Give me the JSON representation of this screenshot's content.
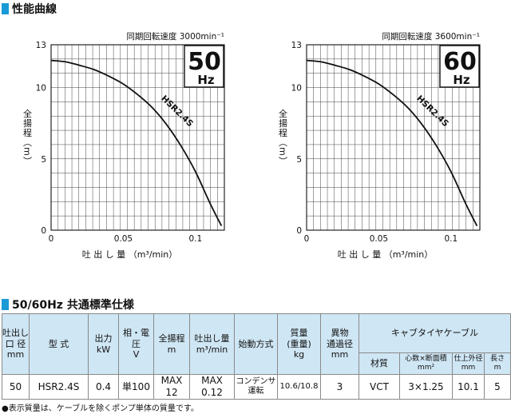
{
  "section1_title": "性能曲線",
  "section2_title": "50/60Hz 共通標準仕様",
  "chart_data": [
    {
      "type": "line",
      "speed_label": "同期回転速度 3000min⁻¹",
      "freq_value": "50",
      "freq_unit": "Hz",
      "ylabel": "全揚程（m）",
      "xlabel": "吐 出 し 量 （m³/min）",
      "xlim": [
        0,
        0.12
      ],
      "ylim": [
        0,
        13
      ],
      "x_ticks": [
        0,
        0.05,
        0.1
      ],
      "x_tick_labels": [
        "0",
        "0.05",
        "0.1"
      ],
      "y_ticks": [
        0,
        5,
        10,
        13
      ],
      "y_tick_labels": [
        "0",
        "5",
        "10",
        "13"
      ],
      "grid": true,
      "series": [
        {
          "name": "HSR2.4S",
          "x": [
            0,
            0.01,
            0.02,
            0.03,
            0.04,
            0.05,
            0.06,
            0.07,
            0.08,
            0.09,
            0.1,
            0.11,
            0.118
          ],
          "y": [
            11.9,
            11.8,
            11.55,
            11.25,
            10.8,
            10.25,
            9.5,
            8.6,
            7.4,
            5.9,
            4.1,
            1.9,
            0.3
          ]
        }
      ]
    },
    {
      "type": "line",
      "speed_label": "同期回転速度 3600min⁻¹",
      "freq_value": "60",
      "freq_unit": "Hz",
      "ylabel": "全揚程（m）",
      "xlabel": "吐 出 し 量 （m³/min）",
      "xlim": [
        0,
        0.12
      ],
      "ylim": [
        0,
        13
      ],
      "x_ticks": [
        0,
        0.05,
        0.1
      ],
      "x_tick_labels": [
        "0",
        "0.05",
        "0.1"
      ],
      "y_ticks": [
        0,
        5,
        10,
        13
      ],
      "y_tick_labels": [
        "0",
        "5",
        "10",
        "13"
      ],
      "grid": true,
      "series": [
        {
          "name": "HSR2.4S",
          "x": [
            0,
            0.01,
            0.02,
            0.03,
            0.04,
            0.05,
            0.06,
            0.07,
            0.08,
            0.09,
            0.1,
            0.11,
            0.118
          ],
          "y": [
            11.9,
            11.8,
            11.55,
            11.25,
            10.8,
            10.25,
            9.5,
            8.6,
            7.4,
            5.9,
            4.1,
            1.9,
            0.3
          ]
        }
      ]
    }
  ],
  "table": {
    "h_bore": [
      "吐出し",
      "口 径",
      "mm"
    ],
    "h_model": "型 式",
    "h_output": [
      "出力",
      "kW"
    ],
    "h_phase": [
      "相・電圧",
      "V"
    ],
    "h_head": [
      "全揚程",
      "m"
    ],
    "h_flow": [
      "吐出し量",
      "m³/min"
    ],
    "h_start": "始動方式",
    "h_mass": [
      "質量",
      "(重量)",
      "kg"
    ],
    "h_passage": [
      "異物",
      "通過径",
      "mm"
    ],
    "h_cable": "キャブタイヤケーブル",
    "h_material": "材質",
    "h_core": [
      "心数×断面積",
      "mm²"
    ],
    "h_outer": [
      "仕上外径",
      "mm"
    ],
    "h_length": [
      "長さ",
      "m"
    ],
    "row": {
      "bore": "50",
      "model": "HSR2.4S",
      "output": "0.4",
      "phase": "単100",
      "head": "MAX 12",
      "flow": "MAX 0.12",
      "start": [
        "コンデンサ",
        "運転"
      ],
      "mass": "10.6/10.8",
      "passage": "3",
      "material": "VCT",
      "core": "3×1.25",
      "outer": "10.1",
      "length": "5"
    }
  },
  "footnote": "●表示質量は、ケーブルを除くポンプ単体の質量です。",
  "colors": {
    "accent": "#1a9ad6",
    "header_bg": "#cfe6f4",
    "border": "#8a8a8a"
  }
}
